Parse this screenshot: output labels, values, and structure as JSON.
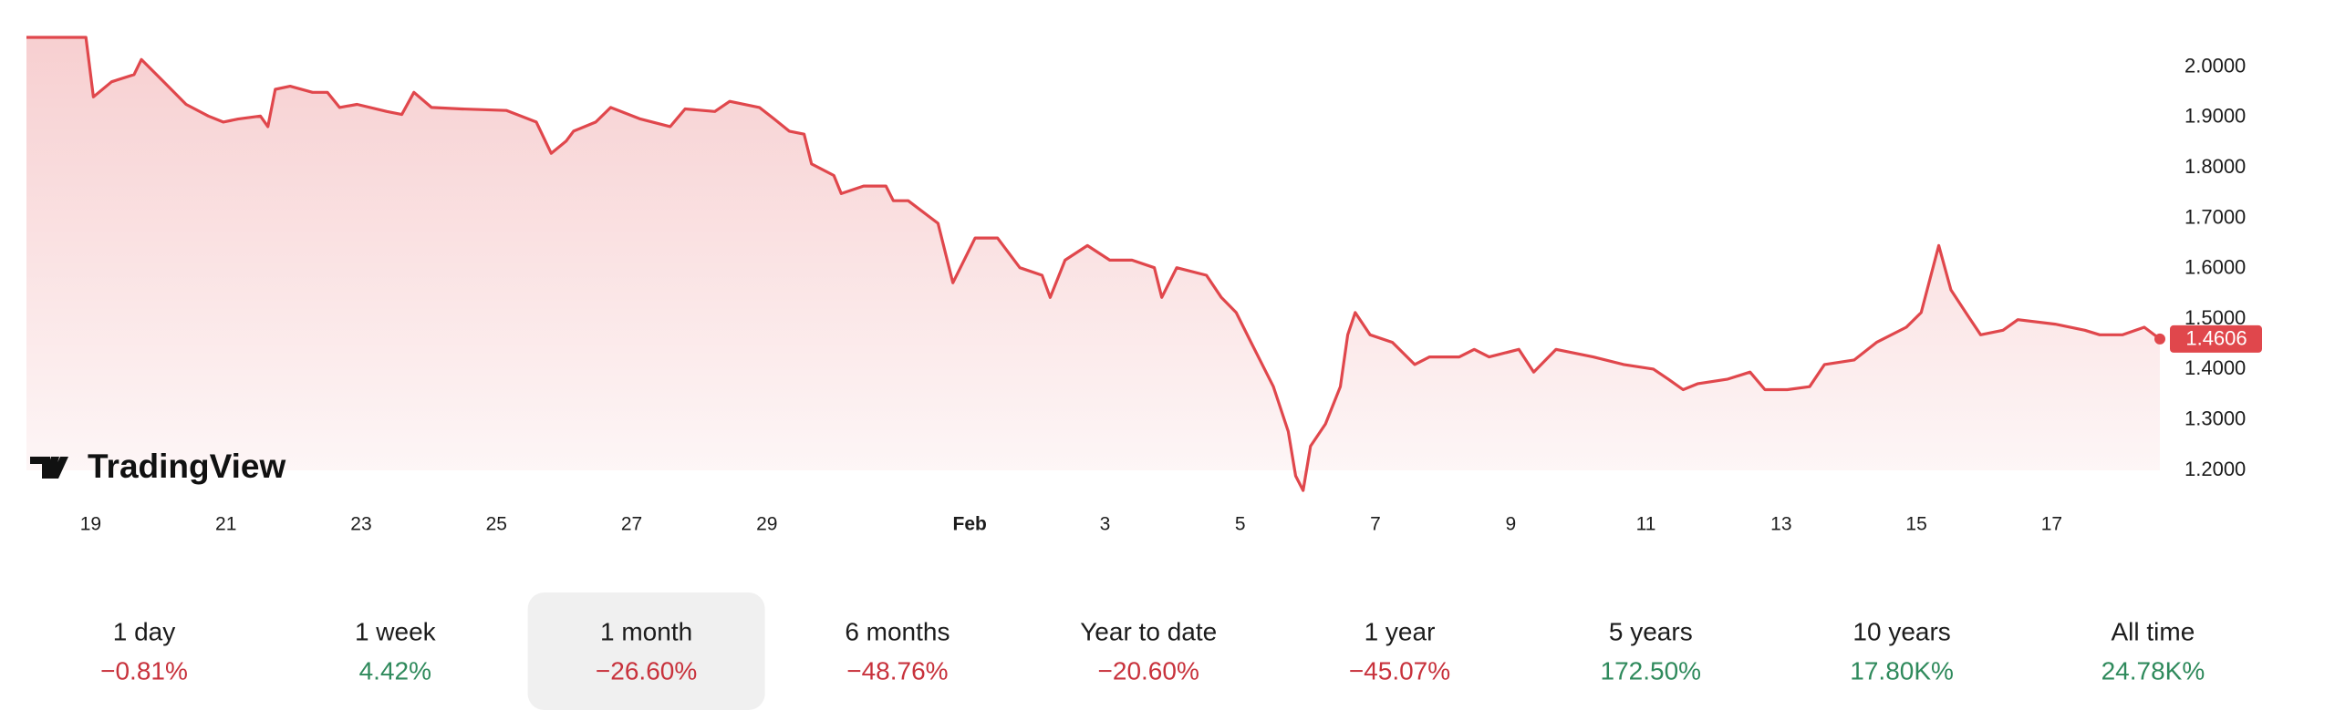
{
  "chart_data": {
    "type": "line",
    "series": [
      {
        "name": null,
        "color": "#e0474c",
        "x": [
          18.05,
          18.93,
          19.04,
          19.31,
          19.64,
          19.75,
          20.08,
          20.41,
          20.74,
          20.96,
          21.18,
          21.51,
          21.62,
          21.73,
          21.95,
          22.28,
          22.5,
          22.68,
          22.94,
          23.38,
          23.6,
          23.78,
          24.04,
          24.48,
          25.15,
          25.59,
          25.81,
          26.03,
          26.14,
          26.47,
          26.69,
          27.13,
          27.57,
          27.79,
          28.23,
          28.45,
          28.89,
          29.11,
          29.33,
          29.55,
          29.66,
          29.99,
          30.1,
          30.43,
          30.76,
          30.87,
          31.09,
          31.53,
          31.75,
          32.08,
          32.41,
          32.74,
          33.07,
          33.19,
          33.41,
          33.74,
          34.07,
          34.4,
          34.73,
          34.84,
          35.06,
          35.5,
          35.72,
          35.94,
          36.16,
          36.49,
          36.71,
          36.82,
          36.93,
          37.04,
          37.26,
          37.48,
          37.59,
          37.7,
          37.92,
          38.25,
          38.58,
          38.8,
          39.24,
          39.46,
          39.68,
          40.12,
          40.34,
          40.67,
          41.22,
          41.67,
          42.11,
          42.33,
          42.55,
          42.77,
          43.21,
          43.54,
          43.76,
          44.09,
          44.42,
          44.64,
          45.08,
          45.41,
          45.85,
          46.07,
          46.33,
          46.51,
          46.73,
          46.95,
          47.28,
          47.5,
          48.05,
          48.49,
          48.71,
          49.05,
          49.37,
          49.6
        ],
        "values": [
          2.059,
          2.059,
          1.941,
          1.971,
          1.985,
          2.015,
          1.971,
          1.926,
          1.903,
          1.891,
          1.897,
          1.903,
          1.882,
          1.956,
          1.962,
          1.95,
          1.95,
          1.92,
          1.926,
          1.912,
          1.906,
          1.95,
          1.92,
          1.917,
          1.914,
          1.891,
          1.829,
          1.853,
          1.873,
          1.891,
          1.92,
          1.897,
          1.882,
          1.917,
          1.912,
          1.932,
          1.92,
          1.897,
          1.873,
          1.867,
          1.808,
          1.785,
          1.749,
          1.764,
          1.764,
          1.735,
          1.735,
          1.69,
          1.572,
          1.661,
          1.661,
          1.602,
          1.587,
          1.543,
          1.617,
          1.646,
          1.617,
          1.617,
          1.602,
          1.543,
          1.602,
          1.587,
          1.543,
          1.513,
          1.454,
          1.366,
          1.277,
          1.189,
          1.16,
          1.248,
          1.292,
          1.366,
          1.469,
          1.513,
          1.469,
          1.454,
          1.41,
          1.425,
          1.425,
          1.44,
          1.425,
          1.44,
          1.395,
          1.44,
          1.425,
          1.41,
          1.401,
          1.381,
          1.36,
          1.372,
          1.381,
          1.395,
          1.36,
          1.36,
          1.366,
          1.41,
          1.419,
          1.454,
          1.484,
          1.513,
          1.646,
          1.558,
          1.513,
          1.469,
          1.478,
          1.499,
          1.49,
          1.478,
          1.469,
          1.469,
          1.484,
          1.4606
        ],
        "last_label": "1.4606"
      }
    ],
    "xlim": [
      18.05,
      49.6
    ],
    "xticks": [
      {
        "value": 19,
        "label": "19"
      },
      {
        "value": 21,
        "label": "21"
      },
      {
        "value": 23,
        "label": "23"
      },
      {
        "value": 25,
        "label": "25"
      },
      {
        "value": 27,
        "label": "27"
      },
      {
        "value": 29,
        "label": "29"
      },
      {
        "value": 32,
        "label": "Feb"
      },
      {
        "value": 34,
        "label": "3"
      },
      {
        "value": 36,
        "label": "5"
      },
      {
        "value": 38,
        "label": "7"
      },
      {
        "value": 40,
        "label": "9"
      },
      {
        "value": 42,
        "label": "11"
      },
      {
        "value": 44,
        "label": "13"
      },
      {
        "value": 46,
        "label": "15"
      },
      {
        "value": 48,
        "label": "17"
      }
    ],
    "ylim": [
      1.153,
      2.059
    ],
    "yticks": [
      {
        "value": 1.2,
        "label": "1.2000"
      },
      {
        "value": 1.3,
        "label": "1.3000"
      },
      {
        "value": 1.4,
        "label": "1.4000"
      },
      {
        "value": 1.5,
        "label": "1.5000"
      },
      {
        "value": 1.6,
        "label": "1.6000"
      },
      {
        "value": 1.7,
        "label": "1.7000"
      },
      {
        "value": 1.8,
        "label": "1.8000"
      },
      {
        "value": 1.9,
        "label": "1.9000"
      },
      {
        "value": 2,
        "label": "2.0000"
      }
    ],
    "watermark": "TradingView"
  },
  "periods": [
    {
      "label": "1 day",
      "change": "−0.81%",
      "color": "#c8323c"
    },
    {
      "label": "1 week",
      "change": "4.42%",
      "color": "#2f8a5c"
    },
    {
      "label": "1 month",
      "change": "−26.60%",
      "color": "#c8323c",
      "selected": true
    },
    {
      "label": "6 months",
      "change": "−48.76%",
      "color": "#c8323c"
    },
    {
      "label": "Year to date",
      "change": "−20.60%",
      "color": "#c8323c"
    },
    {
      "label": "1 year",
      "change": "−45.07%",
      "color": "#c8323c"
    },
    {
      "label": "5 years",
      "change": "172.50%",
      "color": "#2f8a5c"
    },
    {
      "label": "10 years",
      "change": "17.80K%",
      "color": "#2f8a5c"
    },
    {
      "label": "All time",
      "change": "24.78K%",
      "color": "#2f8a5c"
    }
  ]
}
